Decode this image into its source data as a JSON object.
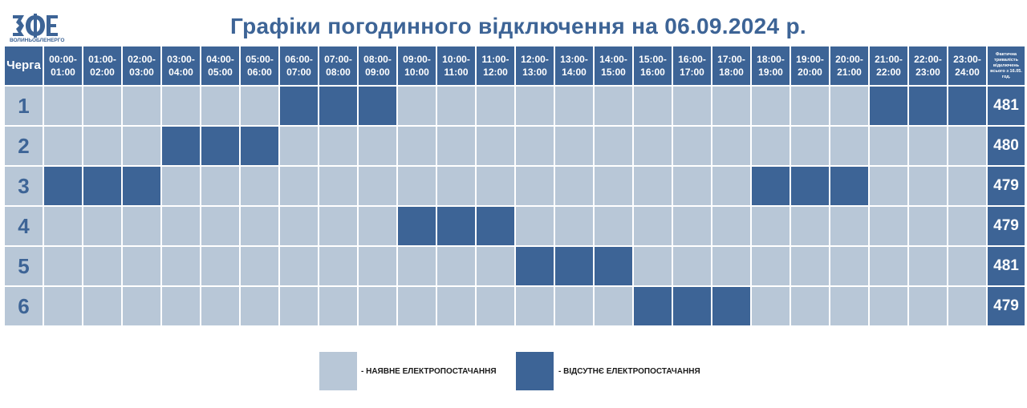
{
  "header": {
    "logo_text": "ВОЛИНЬОБЛЕНЕРГО",
    "title": "Графіки погодинного відключення на 06.09.2024 р."
  },
  "table": {
    "queue_header": "Черга",
    "total_header": "Фактична тривалість відключень всього з 16.05. год.",
    "hours": [
      "00:00-\n01:00",
      "01:00-\n02:00",
      "02:00-\n03:00",
      "03:00-\n04:00",
      "04:00-\n05:00",
      "05:00-\n06:00",
      "06:00-\n07:00",
      "07:00-\n08:00",
      "08:00-\n09:00",
      "09:00-\n10:00",
      "10:00-\n11:00",
      "11:00-\n12:00",
      "12:00-\n13:00",
      "13:00-\n14:00",
      "14:00-\n15:00",
      "15:00-\n16:00",
      "16:00-\n17:00",
      "17:00-\n18:00",
      "18:00-\n19:00",
      "19:00-\n20:00",
      "20:00-\n21:00",
      "21:00-\n22:00",
      "22:00-\n23:00",
      "23:00-\n24:00"
    ],
    "rows": [
      {
        "queue": "1",
        "total": "481",
        "off_hours": [
          6,
          7,
          8,
          21,
          22,
          23
        ]
      },
      {
        "queue": "2",
        "total": "480",
        "off_hours": [
          3,
          4,
          5
        ]
      },
      {
        "queue": "3",
        "total": "479",
        "off_hours": [
          0,
          1,
          2,
          18,
          19,
          20
        ]
      },
      {
        "queue": "4",
        "total": "479",
        "off_hours": [
          9,
          10,
          11
        ]
      },
      {
        "queue": "5",
        "total": "481",
        "off_hours": [
          12,
          13,
          14
        ]
      },
      {
        "queue": "6",
        "total": "479",
        "off_hours": [
          15,
          16,
          17
        ]
      }
    ]
  },
  "legend": {
    "on_label": "- НАЯВНЕ ЕЛЕКТРОПОСТАЧАННЯ",
    "off_label": "- ВІДСУТНЄ ЕЛЕКТРОПОСТАЧАННЯ"
  },
  "colors": {
    "on": "#b8c7d7",
    "off": "#3d6496",
    "title": "#3d6496"
  }
}
